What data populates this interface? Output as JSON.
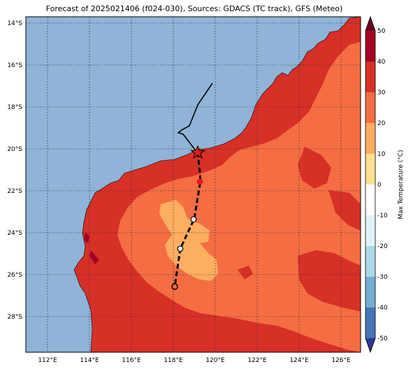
{
  "title": "Forecast of 2025021406 (f024-030), Sources: GDACS (TC track), GFS (Meteo)",
  "map": {
    "lon_range": [
      111,
      127
    ],
    "lat_range": [
      -29.7,
      -13.7
    ],
    "lon_ticks": [
      "112°E",
      "114°E",
      "116°E",
      "118°E",
      "120°E",
      "122°E",
      "124°E",
      "126°E"
    ],
    "lat_ticks": [
      "14°S",
      "16°S",
      "18°S",
      "20°S",
      "22°S",
      "24°S",
      "26°S",
      "28°S"
    ],
    "grid": true,
    "ocean_color": "#8fb4d8"
  },
  "colorbar": {
    "label": "Max Temperature (°C)",
    "ticks": [
      "50",
      "40",
      "30",
      "20",
      "10",
      "0",
      "-10",
      "-20",
      "-30",
      "-40",
      "-50"
    ],
    "colors": [
      "#67001f",
      "#b2182b",
      "#d6604d",
      "#f4a582",
      "#fddbc7",
      "#f7f7f7",
      "#d1e5f0",
      "#92c5de",
      "#4393c3",
      "#2166ac",
      "#053061"
    ]
  },
  "track": {
    "past_color": "#000000",
    "forecast_color": "#000000",
    "current_marker": "star",
    "current_color": "#e31a1c"
  }
}
